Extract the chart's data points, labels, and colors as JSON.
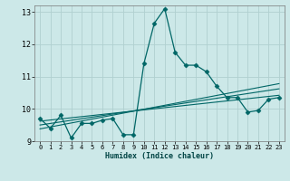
{
  "title": "",
  "xlabel": "Humidex (Indice chaleur)",
  "bg_color": "#cce8e8",
  "grid_color": "#b0d0d0",
  "line_color": "#006666",
  "xlim": [
    -0.5,
    23.5
  ],
  "ylim": [
    9.0,
    13.2
  ],
  "yticks": [
    9,
    10,
    11,
    12,
    13
  ],
  "xticks": [
    0,
    1,
    2,
    3,
    4,
    5,
    6,
    7,
    8,
    9,
    10,
    11,
    12,
    13,
    14,
    15,
    16,
    17,
    18,
    19,
    20,
    21,
    22,
    23
  ],
  "main_x": [
    0,
    1,
    2,
    3,
    4,
    5,
    6,
    7,
    8,
    9,
    10,
    11,
    12,
    13,
    14,
    15,
    16,
    17,
    18,
    19,
    20,
    21,
    22,
    23
  ],
  "main_y": [
    9.7,
    9.4,
    9.8,
    9.1,
    9.55,
    9.55,
    9.65,
    9.7,
    9.2,
    9.2,
    11.4,
    12.65,
    13.1,
    11.75,
    11.35,
    11.35,
    11.15,
    10.7,
    10.35,
    10.35,
    9.9,
    9.95,
    10.3,
    10.35
  ],
  "line1_x": [
    0,
    23
  ],
  "line1_y": [
    9.62,
    10.42
  ],
  "line2_x": [
    0,
    23
  ],
  "line2_y": [
    9.5,
    10.62
  ],
  "line3_x": [
    0,
    23
  ],
  "line3_y": [
    9.38,
    10.78
  ]
}
